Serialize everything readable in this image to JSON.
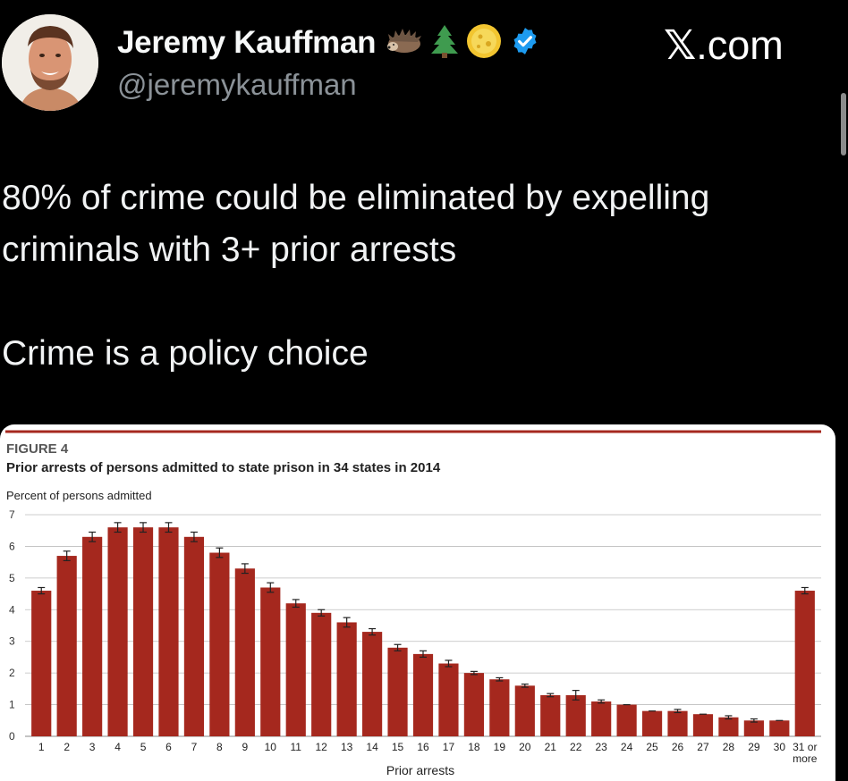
{
  "author": {
    "name": "Jeremy Kauffman",
    "handle": "@jeremykauffman",
    "verified": true,
    "badges": [
      "hedgehog-emoji",
      "evergreen-tree-emoji",
      "coin-emoji"
    ]
  },
  "site": {
    "x_glyph": "𝕏",
    "domain": ".com"
  },
  "tweet": {
    "line1": "80% of crime could be eliminated by expelling",
    "line2": "criminals with 3+ prior arrests",
    "line3": "Crime is a policy choice"
  },
  "chart_data": {
    "type": "bar",
    "figure_label": "FIGURE 4",
    "title": "Prior arrests of persons admitted to state prison in 34 states in 2014",
    "ylabel": "Percent of persons admitted",
    "xlabel": "Prior arrests",
    "ylim": [
      0,
      7
    ],
    "yticks": [
      0,
      1,
      2,
      3,
      4,
      5,
      6,
      7
    ],
    "grid": true,
    "error_bars": true,
    "bar_color": "#a5281e",
    "categories": [
      "1",
      "2",
      "3",
      "4",
      "5",
      "6",
      "7",
      "8",
      "9",
      "10",
      "11",
      "12",
      "13",
      "14",
      "15",
      "16",
      "17",
      "18",
      "19",
      "20",
      "21",
      "22",
      "23",
      "24",
      "25",
      "26",
      "27",
      "28",
      "29",
      "30",
      "31 or more"
    ],
    "values": [
      4.6,
      5.7,
      6.3,
      6.6,
      6.6,
      6.6,
      6.3,
      5.8,
      5.3,
      4.7,
      4.2,
      3.9,
      3.6,
      3.3,
      2.8,
      2.6,
      2.3,
      2.0,
      1.8,
      1.6,
      1.3,
      1.3,
      1.1,
      1.0,
      0.8,
      0.8,
      0.7,
      0.6,
      0.5,
      0.5,
      4.6
    ],
    "errors": [
      0.1,
      0.15,
      0.15,
      0.15,
      0.15,
      0.15,
      0.15,
      0.15,
      0.15,
      0.15,
      0.12,
      0.1,
      0.15,
      0.1,
      0.1,
      0.1,
      0.1,
      0.05,
      0.05,
      0.05,
      0.05,
      0.15,
      0.05,
      0.0,
      0.0,
      0.05,
      0.0,
      0.05,
      0.05,
      0.0,
      0.1
    ]
  },
  "colors": {
    "background": "#000000",
    "text": "#e7e9ea",
    "handle": "#8b9298",
    "verified": "#1d9bf0",
    "bar": "#a5281e",
    "rule": "#a5281e"
  }
}
